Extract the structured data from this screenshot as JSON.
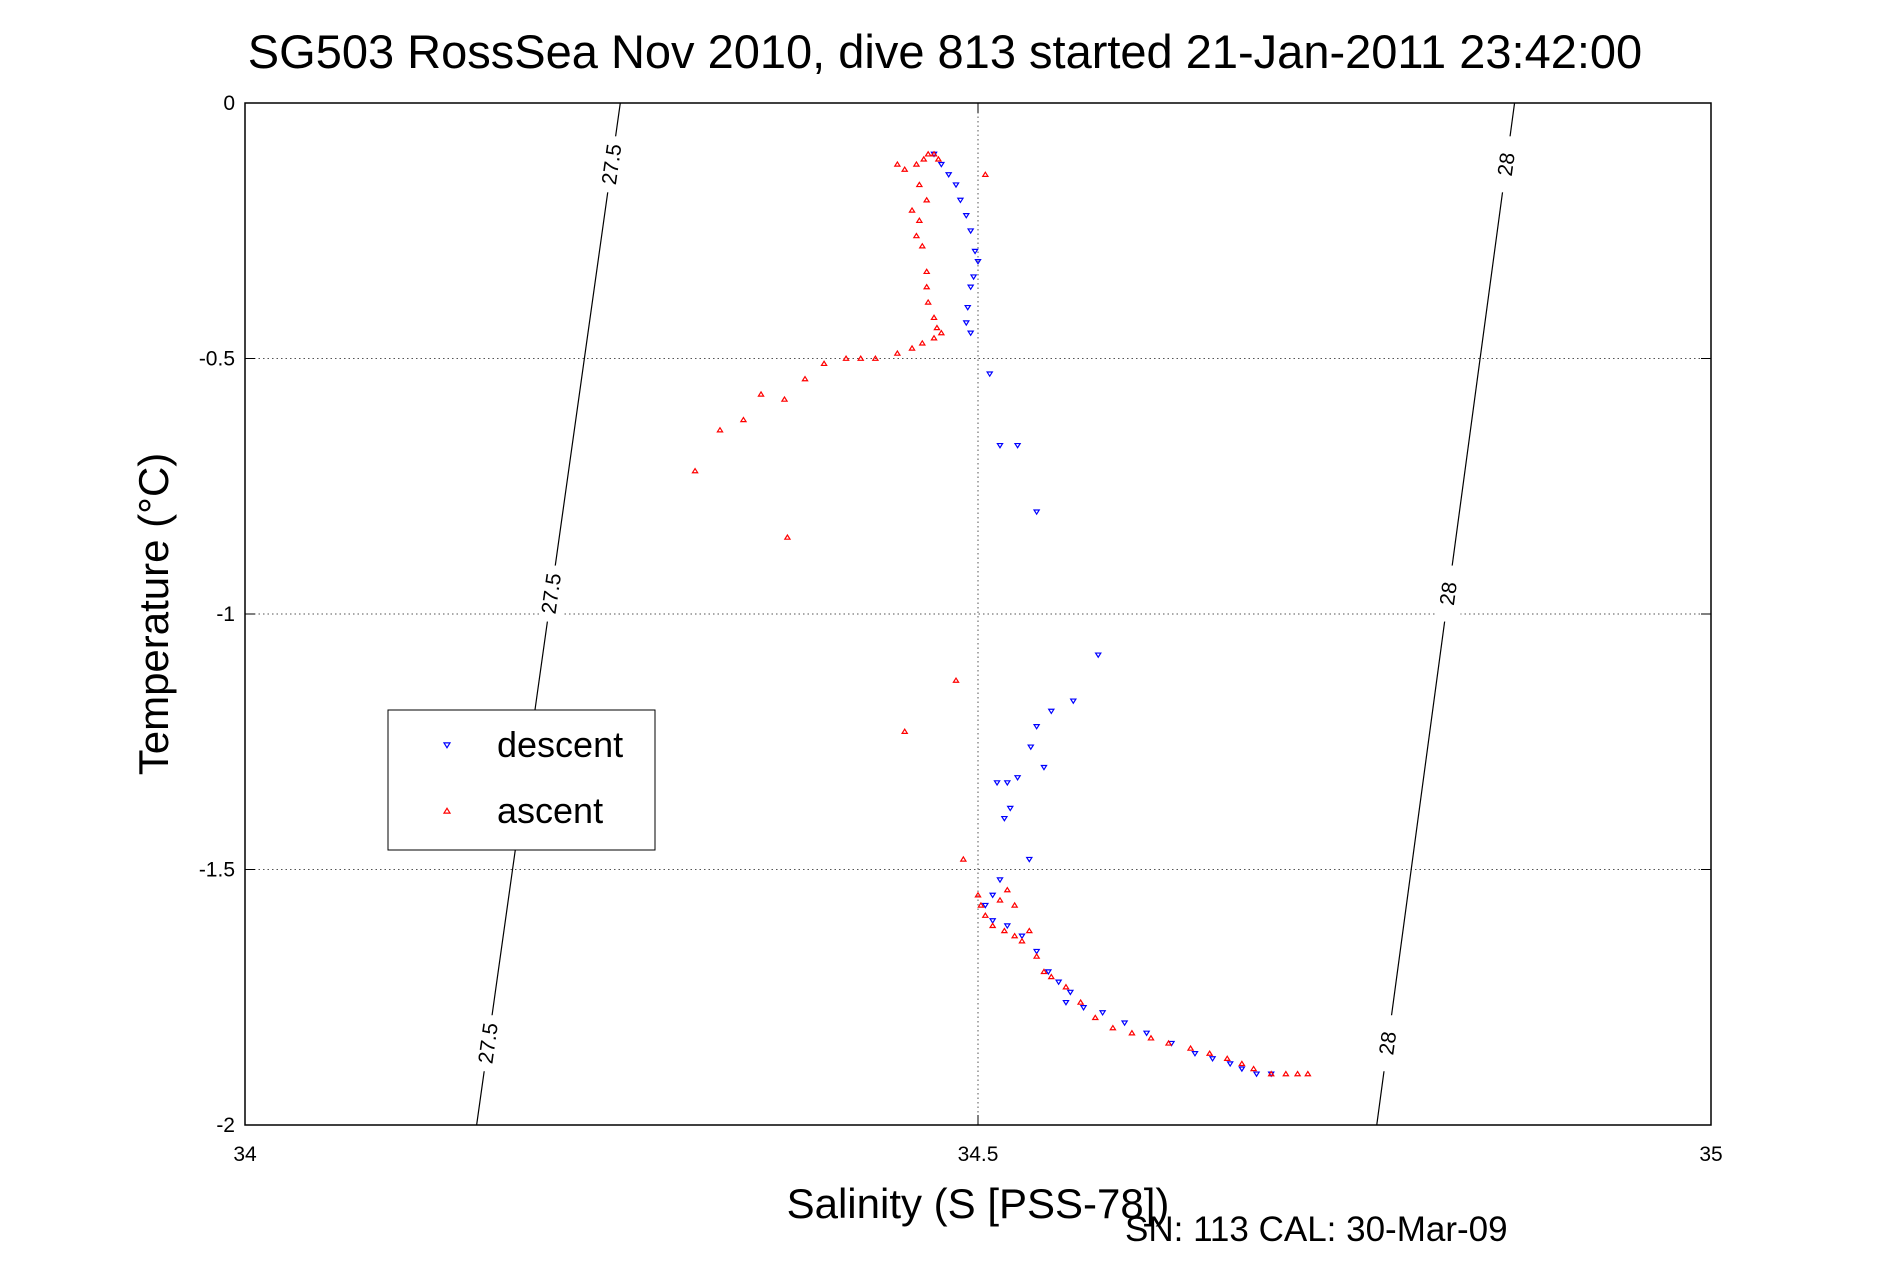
{
  "chart_data": {
    "type": "scatter",
    "title": "SG503 RossSea Nov 2010, dive 813 started 21-Jan-2011 23:42:00",
    "xlabel": "Salinity (S [PSS-78])",
    "ylabel": "Temperature (°C)",
    "xlim": [
      34,
      35
    ],
    "ylim": [
      -2,
      0
    ],
    "xticks": [
      "34",
      "34.5",
      "35"
    ],
    "yticks": [
      "0",
      "-0.5",
      "-1",
      "-1.5",
      "-2"
    ],
    "grid": true,
    "legend_position": "left-middle",
    "footer": "SN: 113  CAL: 30-Mar-09",
    "series": [
      {
        "name": "descent",
        "color": "#0000ff",
        "marker": "down-triangle",
        "points": [
          [
            34.47,
            -0.1
          ],
          [
            34.475,
            -0.12
          ],
          [
            34.48,
            -0.14
          ],
          [
            34.485,
            -0.16
          ],
          [
            34.488,
            -0.19
          ],
          [
            34.492,
            -0.22
          ],
          [
            34.495,
            -0.25
          ],
          [
            34.498,
            -0.29
          ],
          [
            34.5,
            -0.31
          ],
          [
            34.497,
            -0.34
          ],
          [
            34.495,
            -0.36
          ],
          [
            34.493,
            -0.4
          ],
          [
            34.492,
            -0.43
          ],
          [
            34.495,
            -0.45
          ],
          [
            34.508,
            -0.53
          ],
          [
            34.515,
            -0.67
          ],
          [
            34.527,
            -0.67
          ],
          [
            34.54,
            -0.8
          ],
          [
            34.582,
            -1.08
          ],
          [
            34.565,
            -1.17
          ],
          [
            34.55,
            -1.19
          ],
          [
            34.54,
            -1.22
          ],
          [
            34.536,
            -1.26
          ],
          [
            34.545,
            -1.3
          ],
          [
            34.527,
            -1.32
          ],
          [
            34.513,
            -1.33
          ],
          [
            34.52,
            -1.33
          ],
          [
            34.522,
            -1.38
          ],
          [
            34.518,
            -1.4
          ],
          [
            34.535,
            -1.48
          ],
          [
            34.515,
            -1.52
          ],
          [
            34.51,
            -1.55
          ],
          [
            34.505,
            -1.57
          ],
          [
            34.51,
            -1.6
          ],
          [
            34.52,
            -1.61
          ],
          [
            34.53,
            -1.63
          ],
          [
            34.54,
            -1.66
          ],
          [
            34.548,
            -1.7
          ],
          [
            34.555,
            -1.72
          ],
          [
            34.563,
            -1.74
          ],
          [
            34.56,
            -1.76
          ],
          [
            34.572,
            -1.77
          ],
          [
            34.585,
            -1.78
          ],
          [
            34.6,
            -1.8
          ],
          [
            34.615,
            -1.82
          ],
          [
            34.632,
            -1.84
          ],
          [
            34.648,
            -1.86
          ],
          [
            34.66,
            -1.87
          ],
          [
            34.672,
            -1.88
          ],
          [
            34.68,
            -1.89
          ],
          [
            34.69,
            -1.9
          ],
          [
            34.7,
            -1.9
          ]
        ]
      },
      {
        "name": "ascent",
        "color": "#ff0000",
        "marker": "up-triangle",
        "points": [
          [
            34.463,
            -0.11
          ],
          [
            34.466,
            -0.1
          ],
          [
            34.47,
            -0.1
          ],
          [
            34.473,
            -0.11
          ],
          [
            34.458,
            -0.12
          ],
          [
            34.45,
            -0.13
          ],
          [
            34.445,
            -0.12
          ],
          [
            34.505,
            -0.14
          ],
          [
            34.46,
            -0.16
          ],
          [
            34.465,
            -0.19
          ],
          [
            34.455,
            -0.21
          ],
          [
            34.46,
            -0.23
          ],
          [
            34.458,
            -0.26
          ],
          [
            34.462,
            -0.28
          ],
          [
            34.465,
            -0.33
          ],
          [
            34.465,
            -0.36
          ],
          [
            34.466,
            -0.39
          ],
          [
            34.47,
            -0.42
          ],
          [
            34.472,
            -0.44
          ],
          [
            34.475,
            -0.45
          ],
          [
            34.47,
            -0.46
          ],
          [
            34.462,
            -0.47
          ],
          [
            34.455,
            -0.48
          ],
          [
            34.445,
            -0.49
          ],
          [
            34.43,
            -0.5
          ],
          [
            34.42,
            -0.5
          ],
          [
            34.41,
            -0.5
          ],
          [
            34.395,
            -0.51
          ],
          [
            34.382,
            -0.54
          ],
          [
            34.368,
            -0.58
          ],
          [
            34.352,
            -0.57
          ],
          [
            34.34,
            -0.62
          ],
          [
            34.324,
            -0.64
          ],
          [
            34.307,
            -0.72
          ],
          [
            34.37,
            -0.85
          ],
          [
            34.485,
            -1.13
          ],
          [
            34.45,
            -1.23
          ],
          [
            34.49,
            -1.48
          ],
          [
            34.5,
            -1.55
          ],
          [
            34.502,
            -1.57
          ],
          [
            34.505,
            -1.59
          ],
          [
            34.51,
            -1.61
          ],
          [
            34.518,
            -1.62
          ],
          [
            34.525,
            -1.63
          ],
          [
            34.53,
            -1.64
          ],
          [
            34.52,
            -1.54
          ],
          [
            34.515,
            -1.56
          ],
          [
            34.525,
            -1.57
          ],
          [
            34.535,
            -1.62
          ],
          [
            34.54,
            -1.67
          ],
          [
            34.545,
            -1.7
          ],
          [
            34.55,
            -1.71
          ],
          [
            34.56,
            -1.73
          ],
          [
            34.57,
            -1.76
          ],
          [
            34.58,
            -1.79
          ],
          [
            34.592,
            -1.81
          ],
          [
            34.605,
            -1.82
          ],
          [
            34.618,
            -1.83
          ],
          [
            34.63,
            -1.84
          ],
          [
            34.645,
            -1.85
          ],
          [
            34.658,
            -1.86
          ],
          [
            34.67,
            -1.87
          ],
          [
            34.68,
            -1.88
          ],
          [
            34.688,
            -1.89
          ],
          [
            34.7,
            -1.9
          ],
          [
            34.71,
            -1.9
          ],
          [
            34.718,
            -1.9
          ],
          [
            34.725,
            -1.9
          ]
        ]
      }
    ],
    "isopycnals": [
      {
        "label": "27.5",
        "points": [
          [
            34.256,
            0
          ],
          [
            34.158,
            -2
          ]
        ]
      },
      {
        "label": "28",
        "points": [
          [
            34.866,
            0
          ],
          [
            34.772,
            -2
          ]
        ]
      }
    ]
  }
}
